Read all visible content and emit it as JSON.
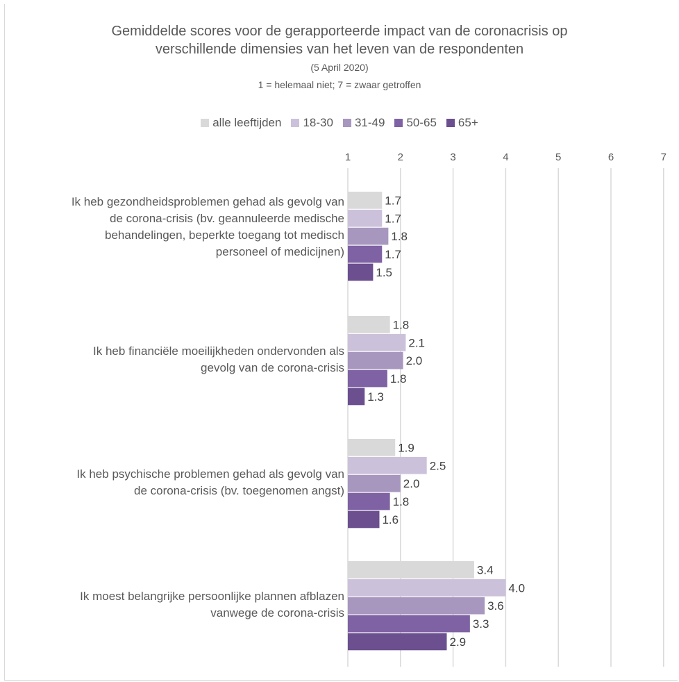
{
  "chart_data": {
    "type": "bar",
    "orientation": "horizontal",
    "title": "Gemiddelde scores voor de gerapporteerde impact van de coronacrisis op verschillende dimensies van het leven van de respondenten",
    "title_lines": [
      "Gemiddelde scores voor de gerapporteerde impact van de coronacrisis op",
      "verschillende dimensies van het leven van de respondenten"
    ],
    "subtitle": "(5 April 2020)",
    "scale_note": "1 = helemaal niet; 7 = zwaar getroffen",
    "xlim": [
      1,
      7
    ],
    "xticks": [
      "1",
      "2",
      "3",
      "4",
      "5",
      "6",
      "7"
    ],
    "axis_position": "top",
    "grid": true,
    "legend_position": "top",
    "categories": [
      [
        "Ik heb gezondheidsproblemen gehad als gevolg van",
        "de corona-crisis (bv. geannuleerde medische",
        "behandelingen, beperkte toegang tot medisch",
        "personeel of medicijnen)"
      ],
      [
        "Ik heb financiële moeilijkheden ondervonden als",
        "gevolg van de corona-crisis"
      ],
      [
        "Ik heb psychische problemen gehad als gevolg van",
        "de corona-crisis (bv. toegenomen angst)"
      ],
      [
        "Ik moest belangrijke persoonlijke plannen afblazen",
        "vanwege de corona-crisis"
      ]
    ],
    "series": [
      {
        "name": "alle leeftijden",
        "color": "#d9d9d9",
        "values": [
          1.65,
          1.8,
          1.9,
          3.4
        ],
        "labels": [
          "1.7",
          "1.8",
          "1.9",
          "3.4"
        ]
      },
      {
        "name": "18-30",
        "color": "#ccc1da",
        "values": [
          1.65,
          2.1,
          2.5,
          4.0
        ],
        "labels": [
          "1.7",
          "2.1",
          "2.5",
          "4.0"
        ]
      },
      {
        "name": "31-49",
        "color": "#a797bf",
        "values": [
          1.77,
          2.05,
          2.0,
          3.6
        ],
        "labels": [
          "1.8",
          "2.0",
          "2.0",
          "3.6"
        ]
      },
      {
        "name": "50-65",
        "color": "#7f62a3",
        "values": [
          1.65,
          1.75,
          1.8,
          3.32
        ],
        "labels": [
          "1.7",
          "1.8",
          "1.8",
          "3.3"
        ]
      },
      {
        "name": "65+",
        "color": "#6b4f8f",
        "values": [
          1.48,
          1.32,
          1.6,
          2.88
        ],
        "labels": [
          "1.5",
          "1.3",
          "1.6",
          "2.9"
        ]
      }
    ]
  }
}
